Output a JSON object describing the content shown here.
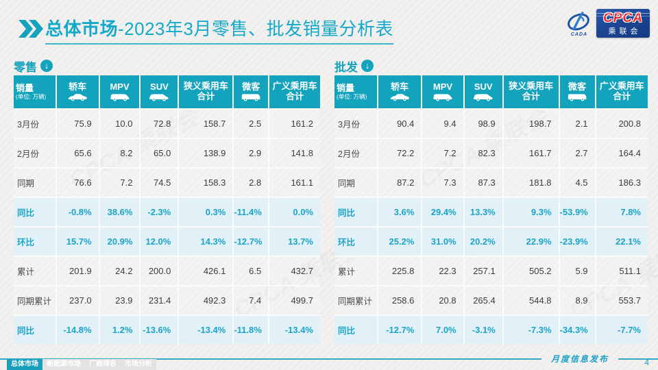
{
  "page": {
    "title_bold": "总体市场",
    "title_rest": "-2023年3月零售、批发销量分析表",
    "footer_note": "月度信息发布",
    "page_number": "4"
  },
  "logo": {
    "swirl_caption": "CADA",
    "box_text": "CPCA",
    "box_subtext": "乘联会"
  },
  "colors": {
    "teal_header": "#14a3bd",
    "title_teal": "#14a9cb",
    "pct_text": "#1ba4c8",
    "pct_row_bg": "#e2f1f7",
    "logo_blue": "#1b4390",
    "logo_red": "#e8262d"
  },
  "columns": [
    {
      "label": "销量",
      "sub": "(单位: 万辆)",
      "icon": null
    },
    {
      "label": "轿车",
      "sub": null,
      "icon": "sedan-car-icon"
    },
    {
      "label": "MPV",
      "sub": null,
      "icon": "mpv-car-icon"
    },
    {
      "label": "SUV",
      "sub": null,
      "icon": "suv-car-icon"
    },
    {
      "label": "狭义乘用车",
      "label2": "合计",
      "sub": null,
      "icon": null
    },
    {
      "label": "微客",
      "sub": null,
      "icon": "microvan-icon"
    },
    {
      "label": "广义乘用车",
      "label2": "合计",
      "sub": null,
      "icon": null
    }
  ],
  "tables": [
    {
      "id": "retail",
      "section_label": "零售",
      "rows": [
        {
          "label": "3月份",
          "type": "number",
          "values": [
            "75.9",
            "10.0",
            "72.8",
            "158.7",
            "2.5",
            "161.2"
          ]
        },
        {
          "label": "2月份",
          "type": "number",
          "values": [
            "65.6",
            "8.2",
            "65.0",
            "138.9",
            "2.9",
            "141.8"
          ]
        },
        {
          "label": "同期",
          "type": "number",
          "values": [
            "76.6",
            "7.2",
            "74.5",
            "158.3",
            "2.8",
            "161.1"
          ]
        },
        {
          "label": "同比",
          "type": "percent",
          "values": [
            "-0.8%",
            "38.6%",
            "-2.3%",
            "0.3%",
            "-11.4%",
            "0.0%"
          ]
        },
        {
          "label": "环比",
          "type": "percent",
          "values": [
            "15.7%",
            "20.9%",
            "12.0%",
            "14.3%",
            "-12.7%",
            "13.7%"
          ]
        },
        {
          "label": "累计",
          "type": "number",
          "values": [
            "201.9",
            "24.2",
            "200.0",
            "426.1",
            "6.5",
            "432.7"
          ]
        },
        {
          "label": "同期累计",
          "type": "number",
          "values": [
            "237.0",
            "23.9",
            "231.4",
            "492.3",
            "7.4",
            "499.7"
          ]
        },
        {
          "label": "同比",
          "type": "percent",
          "values": [
            "-14.8%",
            "1.2%",
            "-13.6%",
            "-13.4%",
            "-11.8%",
            "-13.4%"
          ]
        }
      ]
    },
    {
      "id": "wholesale",
      "section_label": "批发",
      "rows": [
        {
          "label": "3月份",
          "type": "number",
          "values": [
            "90.4",
            "9.4",
            "98.9",
            "198.7",
            "2.1",
            "200.8"
          ]
        },
        {
          "label": "2月份",
          "type": "number",
          "values": [
            "72.2",
            "7.2",
            "82.3",
            "161.7",
            "2.7",
            "164.4"
          ]
        },
        {
          "label": "同期",
          "type": "number",
          "values": [
            "87.2",
            "7.3",
            "87.3",
            "181.8",
            "4.5",
            "186.3"
          ]
        },
        {
          "label": "同比",
          "type": "percent",
          "values": [
            "3.6%",
            "29.4%",
            "13.3%",
            "9.3%",
            "-53.9%",
            "7.8%"
          ]
        },
        {
          "label": "环比",
          "type": "percent",
          "values": [
            "25.2%",
            "31.0%",
            "20.2%",
            "22.9%",
            "-23.9%",
            "22.1%"
          ]
        },
        {
          "label": "累计",
          "type": "number",
          "values": [
            "225.8",
            "22.3",
            "257.1",
            "505.2",
            "5.9",
            "511.1"
          ]
        },
        {
          "label": "同期累计",
          "type": "number",
          "values": [
            "258.6",
            "20.8",
            "265.4",
            "544.8",
            "8.9",
            "553.7"
          ]
        },
        {
          "label": "同比",
          "type": "percent",
          "values": [
            "-12.7%",
            "7.0%",
            "-3.1%",
            "-7.3%",
            "-34.3%",
            "-7.7%"
          ]
        }
      ]
    }
  ],
  "footer_tabs": [
    {
      "label": "总体市场",
      "active": true
    },
    {
      "label": "新能源市场",
      "active": false
    },
    {
      "label": "厂商排名",
      "active": false
    },
    {
      "label": "市场分析",
      "active": false
    }
  ]
}
